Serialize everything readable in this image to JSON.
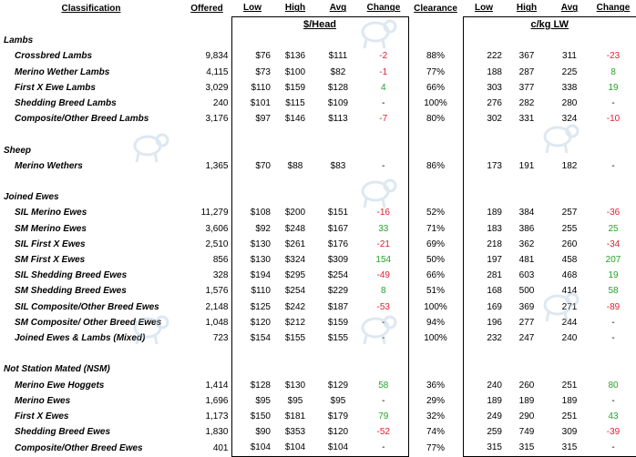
{
  "headers": [
    "Classification",
    "Offered",
    "Low",
    "High",
    "Avg",
    "Change",
    "Clearance",
    "Low",
    "High",
    "Avg",
    "Change"
  ],
  "unit_head": "$/Head",
  "unit_lw": "c/kg LW",
  "colors": {
    "negative": "#e0202e",
    "positive": "#27a22a"
  },
  "watermark_icon": "sheep-silhouette-icon",
  "sections": [
    {
      "title": "Lambs",
      "rows": [
        {
          "name": "Crossbred Lambs",
          "offered": "9,834",
          "low": "$76",
          "high": "$136",
          "avg": "$111",
          "change": "-2",
          "clearance": "88%",
          "lw_low": "222",
          "lw_high": "367",
          "lw_avg": "311",
          "lw_change": "-23"
        },
        {
          "name": "Merino Wether Lambs",
          "offered": "4,115",
          "low": "$73",
          "high": "$100",
          "avg": "$82",
          "change": "-1",
          "clearance": "77%",
          "lw_low": "188",
          "lw_high": "287",
          "lw_avg": "225",
          "lw_change": "8"
        },
        {
          "name": "First X Ewe Lambs",
          "offered": "3,029",
          "low": "$110",
          "high": "$159",
          "avg": "$128",
          "change": "4",
          "clearance": "66%",
          "lw_low": "303",
          "lw_high": "377",
          "lw_avg": "338",
          "lw_change": "19"
        },
        {
          "name": "Shedding Breed Lambs",
          "offered": "240",
          "low": "$101",
          "high": "$115",
          "avg": "$109",
          "change": "-",
          "clearance": "100%",
          "lw_low": "276",
          "lw_high": "282",
          "lw_avg": "280",
          "lw_change": "-"
        },
        {
          "name": "Composite/Other Breed Lambs",
          "offered": "3,176",
          "low": "$97",
          "high": "$146",
          "avg": "$113",
          "change": "-7",
          "clearance": "80%",
          "lw_low": "302",
          "lw_high": "331",
          "lw_avg": "324",
          "lw_change": "-10"
        }
      ]
    },
    {
      "title": "Sheep",
      "rows": [
        {
          "name": "Merino Wethers",
          "offered": "1,365",
          "low": "$70",
          "high": "$88",
          "avg": "$83",
          "change": "-",
          "clearance": "86%",
          "lw_low": "173",
          "lw_high": "191",
          "lw_avg": "182",
          "lw_change": "-"
        }
      ]
    },
    {
      "title": "Joined Ewes",
      "rows": [
        {
          "name": "SIL Merino Ewes",
          "offered": "11,279",
          "low": "$108",
          "high": "$200",
          "avg": "$151",
          "change": "-16",
          "clearance": "52%",
          "lw_low": "189",
          "lw_high": "384",
          "lw_avg": "257",
          "lw_change": "-36"
        },
        {
          "name": "SM Merino Ewes",
          "offered": "3,606",
          "low": "$92",
          "high": "$248",
          "avg": "$167",
          "change": "33",
          "clearance": "71%",
          "lw_low": "183",
          "lw_high": "386",
          "lw_avg": "255",
          "lw_change": "25"
        },
        {
          "name": "SIL First X Ewes",
          "offered": "2,510",
          "low": "$130",
          "high": "$261",
          "avg": "$176",
          "change": "-21",
          "clearance": "69%",
          "lw_low": "218",
          "lw_high": "362",
          "lw_avg": "260",
          "lw_change": "-34"
        },
        {
          "name": "SM First X Ewes",
          "offered": "856",
          "low": "$130",
          "high": "$324",
          "avg": "$309",
          "change": "154",
          "clearance": "50%",
          "lw_low": "197",
          "lw_high": "481",
          "lw_avg": "458",
          "lw_change": "207"
        },
        {
          "name": "SIL Shedding Breed Ewes",
          "offered": "328",
          "low": "$194",
          "high": "$295",
          "avg": "$254",
          "change": "-49",
          "clearance": "66%",
          "lw_low": "281",
          "lw_high": "603",
          "lw_avg": "468",
          "lw_change": "19"
        },
        {
          "name": "SM Shedding Breed Ewes",
          "offered": "1,576",
          "low": "$110",
          "high": "$254",
          "avg": "$229",
          "change": "8",
          "clearance": "51%",
          "lw_low": "168",
          "lw_high": "500",
          "lw_avg": "414",
          "lw_change": "58"
        },
        {
          "name": "SIL Composite/Other Breed Ewes",
          "offered": "2,148",
          "low": "$125",
          "high": "$242",
          "avg": "$187",
          "change": "-53",
          "clearance": "100%",
          "lw_low": "169",
          "lw_high": "369",
          "lw_avg": "271",
          "lw_change": "-89"
        },
        {
          "name": "SM Composite/ Other Breed Ewes",
          "offered": "1,048",
          "low": "$120",
          "high": "$212",
          "avg": "$159",
          "change": "-",
          "clearance": "94%",
          "lw_low": "196",
          "lw_high": "277",
          "lw_avg": "244",
          "lw_change": "-"
        },
        {
          "name": "Joined Ewes & Lambs (Mixed)",
          "offered": "723",
          "low": "$154",
          "high": "$155",
          "avg": "$155",
          "change": "-",
          "clearance": "100%",
          "lw_low": "232",
          "lw_high": "247",
          "lw_avg": "240",
          "lw_change": "-"
        }
      ]
    },
    {
      "title": "Not Station Mated (NSM)",
      "rows": [
        {
          "name": "Merino Ewe Hoggets",
          "offered": "1,414",
          "low": "$128",
          "high": "$130",
          "avg": "$129",
          "change": "58",
          "clearance": "36%",
          "lw_low": "240",
          "lw_high": "260",
          "lw_avg": "251",
          "lw_change": "80"
        },
        {
          "name": "Merino Ewes",
          "offered": "1,696",
          "low": "$95",
          "high": "$95",
          "avg": "$95",
          "change": "-",
          "clearance": "29%",
          "lw_low": "189",
          "lw_high": "189",
          "lw_avg": "189",
          "lw_change": "-"
        },
        {
          "name": "First X Ewes",
          "offered": "1,173",
          "low": "$150",
          "high": "$181",
          "avg": "$179",
          "change": "79",
          "clearance": "32%",
          "lw_low": "249",
          "lw_high": "290",
          "lw_avg": "251",
          "lw_change": "43"
        },
        {
          "name": "Shedding Breed Ewes",
          "offered": "1,830",
          "low": "$90",
          "high": "$353",
          "avg": "$120",
          "change": "-52",
          "clearance": "74%",
          "lw_low": "259",
          "lw_high": "749",
          "lw_avg": "309",
          "lw_change": "-39"
        },
        {
          "name": "Composite/Other Breed Ewes",
          "offered": "401",
          "low": "$104",
          "high": "$104",
          "avg": "$104",
          "change": "-",
          "clearance": "77%",
          "lw_low": "315",
          "lw_high": "315",
          "lw_avg": "315",
          "lw_change": "-"
        }
      ]
    }
  ]
}
